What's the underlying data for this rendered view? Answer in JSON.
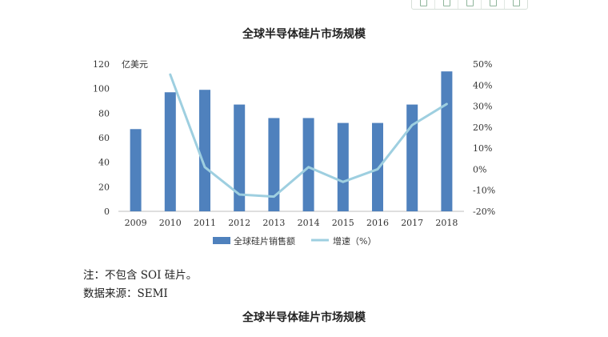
{
  "toolbar": {
    "icons": [
      "save-icon",
      "expand-icon",
      "download-icon",
      "share-icon",
      "settings-icon"
    ]
  },
  "chart_data": {
    "type": "bar",
    "title": "全球半导体硅片市场规模",
    "categories": [
      "2009",
      "2010",
      "2011",
      "2012",
      "2013",
      "2014",
      "2015",
      "2016",
      "2017",
      "2018"
    ],
    "unit_left": "亿美元",
    "y_left": {
      "range": [
        0,
        120
      ],
      "ticks": [
        "0",
        "20",
        "40",
        "60",
        "80",
        "100",
        "120"
      ]
    },
    "y_right": {
      "range": [
        -20,
        50
      ],
      "ticks": [
        "-20%",
        "-10%",
        "0%",
        "10%",
        "20%",
        "30%",
        "40%",
        "50%"
      ]
    },
    "series": [
      {
        "name": "全球硅片销售额",
        "type": "bar",
        "axis": "left",
        "color": "#4f81bd",
        "values": [
          67,
          97,
          99,
          87,
          76,
          76,
          72,
          72,
          87,
          114
        ]
      },
      {
        "name": "增速（%）",
        "type": "line",
        "axis": "right",
        "color": "#9ecfe0",
        "values": [
          null,
          45,
          1,
          -12,
          -13,
          1,
          -6,
          0,
          21,
          31
        ]
      }
    ],
    "legend_position": "bottom",
    "grid": false
  },
  "notes": {
    "note": "注：不包含 SOI 硅片。",
    "source": "数据来源：SEMI"
  },
  "caption": "全球半导体硅片市场规模"
}
